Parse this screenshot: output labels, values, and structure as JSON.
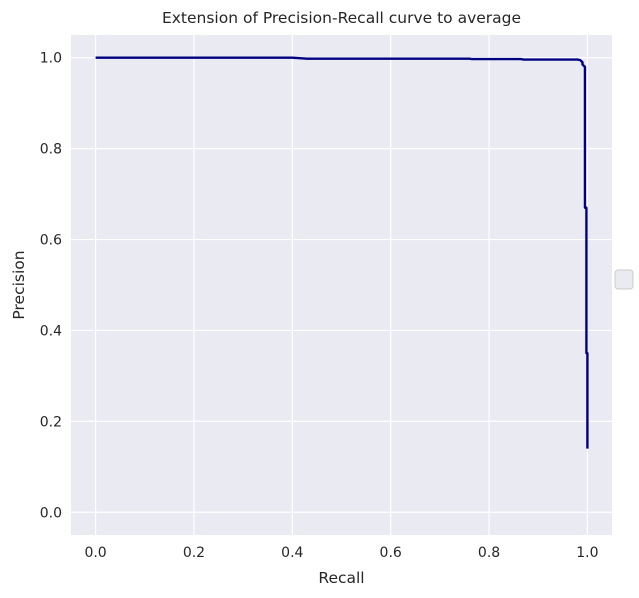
{
  "chart_data": {
    "type": "line",
    "title": "Extension of Precision-Recall curve to average",
    "xlabel": "Recall",
    "ylabel": "Precision",
    "xlim": [
      -0.05,
      1.05
    ],
    "ylim": [
      -0.05,
      1.05
    ],
    "xticks": [
      "0.0",
      "0.2",
      "0.4",
      "0.6",
      "0.8",
      "1.0"
    ],
    "yticks": [
      "0.0",
      "0.2",
      "0.4",
      "0.6",
      "0.8",
      "1.0"
    ],
    "grid": true,
    "legend": {
      "placement": "center-right",
      "entries": []
    },
    "colors": {
      "background": "#EAEAF2",
      "grid": "#FFFFFF",
      "line": "#000080"
    },
    "series": [
      {
        "x": [
          0.0,
          0.4,
          0.43,
          0.76,
          0.765,
          0.865,
          0.87,
          0.98,
          0.985,
          0.99,
          0.99,
          0.995,
          0.995,
          0.998,
          0.998,
          1.0,
          1.0
        ],
        "y": [
          1.0,
          1.0,
          0.998,
          0.998,
          0.997,
          0.997,
          0.996,
          0.996,
          0.995,
          0.99,
          0.985,
          0.98,
          0.67,
          0.67,
          0.35,
          0.35,
          0.14
        ]
      }
    ]
  }
}
